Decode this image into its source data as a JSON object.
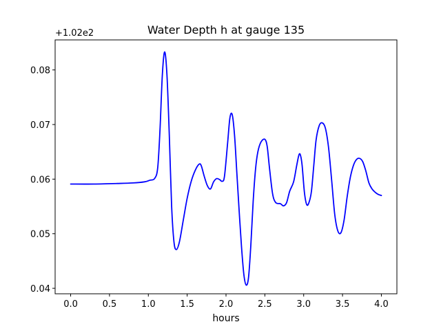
{
  "chart_data": {
    "type": "line",
    "title": "Water Depth h at gauge 135",
    "xlabel": "hours",
    "ylabel": "",
    "offset_label": "+1.02e2",
    "xlim": [
      -0.2,
      4.2
    ],
    "ylim": [
      0.039,
      0.0855
    ],
    "xticks": [
      {
        "value": 0.0,
        "label": "0.0"
      },
      {
        "value": 0.5,
        "label": "0.5"
      },
      {
        "value": 1.0,
        "label": "1.0"
      },
      {
        "value": 1.5,
        "label": "1.5"
      },
      {
        "value": 2.0,
        "label": "2.0"
      },
      {
        "value": 2.5,
        "label": "2.5"
      },
      {
        "value": 3.0,
        "label": "3.0"
      },
      {
        "value": 3.5,
        "label": "3.5"
      },
      {
        "value": 4.0,
        "label": "4.0"
      }
    ],
    "yticks": [
      {
        "value": 0.04,
        "label": "0.04"
      },
      {
        "value": 0.05,
        "label": "0.05"
      },
      {
        "value": 0.06,
        "label": "0.06"
      },
      {
        "value": 0.07,
        "label": "0.07"
      },
      {
        "value": 0.08,
        "label": "0.08"
      }
    ],
    "grid": false,
    "line_color": "#0000ff",
    "series": [
      {
        "x": [
          0.0,
          0.3,
          0.6,
          0.8,
          0.95,
          1.02,
          1.08,
          1.12,
          1.15,
          1.18,
          1.21,
          1.24,
          1.27,
          1.3,
          1.33,
          1.36,
          1.4,
          1.45,
          1.5,
          1.55,
          1.6,
          1.65,
          1.68,
          1.72,
          1.76,
          1.8,
          1.84,
          1.88,
          1.92,
          1.95,
          1.98,
          2.02,
          2.05,
          2.08,
          2.11,
          2.14,
          2.17,
          2.2,
          2.23,
          2.26,
          2.29,
          2.32,
          2.35,
          2.38,
          2.41,
          2.45,
          2.5,
          2.53,
          2.56,
          2.6,
          2.64,
          2.7,
          2.74,
          2.78,
          2.82,
          2.87,
          2.91,
          2.94,
          2.96,
          2.98,
          3.01,
          3.04,
          3.07,
          3.1,
          3.13,
          3.16,
          3.2,
          3.24,
          3.28,
          3.32,
          3.36,
          3.4,
          3.44,
          3.48,
          3.52,
          3.56,
          3.6,
          3.64,
          3.68,
          3.72,
          3.76,
          3.8,
          3.84,
          3.88,
          3.92,
          3.96,
          4.0
        ],
        "y": [
          0.0591,
          0.0591,
          0.0592,
          0.0593,
          0.0595,
          0.0598,
          0.0601,
          0.062,
          0.069,
          0.079,
          0.0833,
          0.079,
          0.068,
          0.055,
          0.0485,
          0.0471,
          0.0485,
          0.0525,
          0.0565,
          0.0595,
          0.0615,
          0.0627,
          0.0625,
          0.0605,
          0.0588,
          0.0582,
          0.0595,
          0.0601,
          0.0599,
          0.0596,
          0.0605,
          0.0665,
          0.0712,
          0.0718,
          0.068,
          0.061,
          0.054,
          0.0475,
          0.0425,
          0.0406,
          0.042,
          0.048,
          0.056,
          0.0618,
          0.065,
          0.0668,
          0.0673,
          0.066,
          0.062,
          0.0573,
          0.0557,
          0.0555,
          0.0551,
          0.0557,
          0.0578,
          0.0595,
          0.0625,
          0.0645,
          0.0643,
          0.0625,
          0.0575,
          0.0553,
          0.0558,
          0.0578,
          0.0625,
          0.0672,
          0.0698,
          0.0703,
          0.0693,
          0.0658,
          0.0598,
          0.0535,
          0.0505,
          0.0502,
          0.0525,
          0.0568,
          0.0603,
          0.0625,
          0.0636,
          0.0638,
          0.0632,
          0.0615,
          0.0593,
          0.0582,
          0.0576,
          0.0572,
          0.057
        ]
      }
    ]
  }
}
